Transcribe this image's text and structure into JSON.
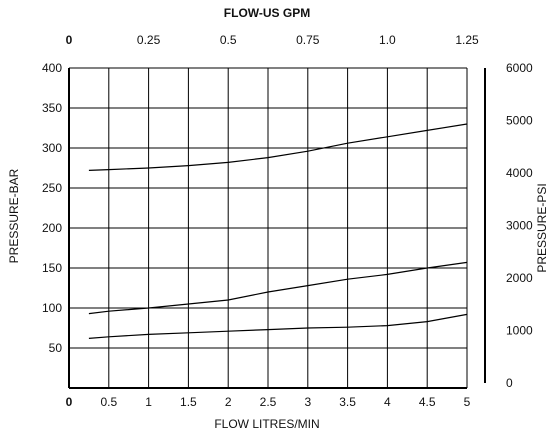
{
  "chart_data": {
    "type": "line",
    "title": "",
    "top_axis": {
      "label": "FLOW-US GPM",
      "ticks": [
        "0",
        "0.25",
        "0.5",
        "0.75",
        "1.0",
        "1.25"
      ],
      "range": [
        0,
        1.25
      ]
    },
    "x_axis": {
      "label": "FLOW LITRES/MIN",
      "ticks": [
        "0",
        "0.5",
        "1",
        "1.5",
        "2",
        "2.5",
        "3",
        "3.5",
        "4",
        "4.5",
        "5"
      ],
      "range": [
        0,
        5
      ]
    },
    "y_axis": {
      "label": "PRESSURE-BAR",
      "ticks": [
        "50",
        "100",
        "150",
        "200",
        "250",
        "300",
        "350",
        "400"
      ],
      "range": [
        0,
        400
      ]
    },
    "right_axis": {
      "label": "PRESSURE-PSI",
      "ticks": [
        "0",
        "1000",
        "2000",
        "3000",
        "4000",
        "5000",
        "6000"
      ],
      "range": [
        0,
        6000
      ]
    },
    "grid": true,
    "series": [
      {
        "color": "#000000",
        "x": [
          0.25,
          0.5,
          1,
          1.5,
          2,
          2.5,
          3,
          3.5,
          4,
          4.5,
          5
        ],
        "y": [
          272,
          273,
          275,
          278,
          282,
          288,
          296,
          306,
          314,
          322,
          330
        ]
      },
      {
        "color": "#000000",
        "x": [
          0.25,
          0.5,
          1,
          1.5,
          2,
          2.5,
          3,
          3.5,
          4,
          4.5,
          5
        ],
        "y": [
          93,
          96,
          100,
          105,
          110,
          120,
          128,
          136,
          142,
          150,
          157
        ]
      },
      {
        "color": "#000000",
        "x": [
          0.25,
          0.5,
          1,
          1.5,
          2,
          2.5,
          3,
          3.5,
          4,
          4.5,
          5
        ],
        "y": [
          62,
          64,
          67,
          69,
          71,
          73,
          75,
          76,
          78,
          83,
          92
        ]
      }
    ]
  }
}
